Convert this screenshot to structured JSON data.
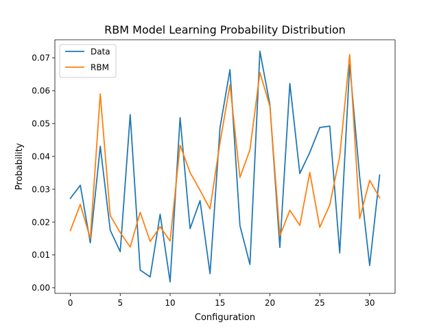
{
  "chart_data": {
    "type": "line",
    "title": "RBM Model Learning Probability Distribution",
    "xlabel": "Configuration",
    "ylabel": "Probability",
    "xlim": [
      -1.55,
      32.55
    ],
    "ylim": [
      -0.0017,
      0.0755
    ],
    "xticks": [
      0,
      5,
      10,
      15,
      20,
      25,
      30
    ],
    "yticks": [
      0.0,
      0.01,
      0.02,
      0.03,
      0.04,
      0.05,
      0.06,
      0.07
    ],
    "ytick_labels": [
      "0.00",
      "0.01",
      "0.02",
      "0.03",
      "0.04",
      "0.05",
      "0.06",
      "0.07"
    ],
    "grid": false,
    "legend_position": "upper-left",
    "x": [
      0,
      1,
      2,
      3,
      4,
      5,
      6,
      7,
      8,
      9,
      10,
      11,
      12,
      13,
      14,
      15,
      16,
      17,
      18,
      19,
      20,
      21,
      22,
      23,
      24,
      25,
      26,
      27,
      28,
      29,
      30,
      31
    ],
    "series": [
      {
        "name": "Data",
        "color": "#1f77b4",
        "values": [
          0.0272,
          0.0312,
          0.0137,
          0.0431,
          0.0175,
          0.011,
          0.0527,
          0.0054,
          0.0033,
          0.0224,
          0.0018,
          0.0518,
          0.018,
          0.0265,
          0.0043,
          0.0487,
          0.0664,
          0.0189,
          0.0071,
          0.072,
          0.0558,
          0.0123,
          0.0622,
          0.0348,
          0.0412,
          0.0488,
          0.0492,
          0.0106,
          0.068,
          0.0337,
          0.0068,
          0.0343
        ]
      },
      {
        "name": "RBM",
        "color": "#ff7f0e",
        "values": [
          0.0174,
          0.0254,
          0.015,
          0.059,
          0.022,
          0.0168,
          0.0124,
          0.023,
          0.0141,
          0.0186,
          0.0142,
          0.0434,
          0.0351,
          0.0297,
          0.024,
          0.0442,
          0.0618,
          0.0336,
          0.042,
          0.0655,
          0.0553,
          0.0158,
          0.0236,
          0.019,
          0.0351,
          0.0184,
          0.0252,
          0.04,
          0.071,
          0.0211,
          0.0327,
          0.0274
        ]
      }
    ]
  }
}
